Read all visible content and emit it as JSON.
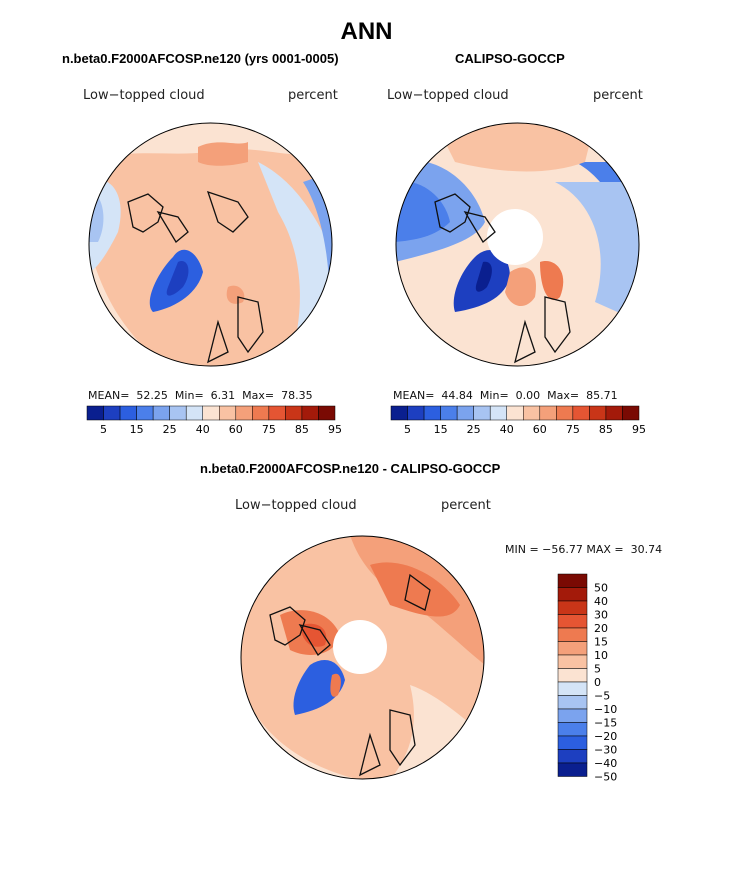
{
  "title": "ANN",
  "panels": {
    "model": {
      "heading": "n.beta0.F2000AFCOSP.ne120 (yrs 0001-0005)",
      "left_label": "Low−topped cloud",
      "right_label": "percent",
      "mean_label": "MEAN=",
      "mean": "52.25",
      "min_label": "Min=",
      "min": "6.31",
      "max_label": "Max=",
      "max": "78.35"
    },
    "obs": {
      "heading": "CALIPSO-GOCCP",
      "left_label": "Low−topped cloud",
      "right_label": "percent",
      "mean_label": "MEAN=",
      "mean": "44.84",
      "min_label": "Min=",
      "min": "0.00",
      "max_label": "Max=",
      "max": "85.71"
    },
    "diff": {
      "heading": "n.beta0.F2000AFCOSP.ne120 - CALIPSO-GOCCP",
      "left_label": "Low−topped cloud",
      "right_label": "percent",
      "minmax": "MIN = −56.77 MAX =  30.74"
    }
  },
  "colors": {
    "abs_scale": [
      "#0a1f8f",
      "#1d3fc0",
      "#2c5fe0",
      "#4b7fea",
      "#7ba3ee",
      "#a8c4f2",
      "#d4e4f7",
      "#fbe3d2",
      "#f9c2a3",
      "#f4a07a",
      "#ee7a50",
      "#e55533",
      "#c93518",
      "#a31a0a",
      "#7a0a03"
    ],
    "diff_scale": [
      "#7a0a03",
      "#a31a0a",
      "#c93518",
      "#e55533",
      "#ee7a50",
      "#f4a07a",
      "#f9c2a3",
      "#fbe3d2",
      "#d4e4f7",
      "#a8c4f2",
      "#7ba3ee",
      "#4b7fea",
      "#2c5fe0",
      "#1d3fc0",
      "#0a1f8f"
    ]
  },
  "chart_data": [
    {
      "type": "heatmap",
      "title": "n.beta0.F2000AFCOSP.ne120 (yrs 0001-0005)",
      "variable": "Low-topped cloud",
      "units": "percent",
      "projection": "north polar stereographic",
      "mean": 52.25,
      "min": 6.31,
      "max": 78.35,
      "colorbar_levels": [
        5,
        10,
        15,
        20,
        25,
        30,
        40,
        50,
        60,
        65,
        75,
        80,
        85,
        90,
        95
      ],
      "colorbar_tick_labels": [
        "5",
        "15",
        "25",
        "40",
        "60",
        "75",
        "85",
        "95"
      ]
    },
    {
      "type": "heatmap",
      "title": "CALIPSO-GOCCP",
      "variable": "Low-topped cloud",
      "units": "percent",
      "projection": "north polar stereographic",
      "mean": 44.84,
      "min": 0.0,
      "max": 85.71,
      "colorbar_levels": [
        5,
        10,
        15,
        20,
        25,
        30,
        40,
        50,
        60,
        65,
        75,
        80,
        85,
        90,
        95
      ],
      "colorbar_tick_labels": [
        "5",
        "15",
        "25",
        "40",
        "60",
        "75",
        "85",
        "95"
      ]
    },
    {
      "type": "heatmap",
      "title": "n.beta0.F2000AFCOSP.ne120 - CALIPSO-GOCCP",
      "variable": "Low-topped cloud",
      "units": "percent",
      "projection": "north polar stereographic",
      "min": -56.77,
      "max": 30.74,
      "colorbar_levels": [
        50,
        40,
        30,
        20,
        15,
        10,
        5,
        0,
        -5,
        -10,
        -15,
        -20,
        -30,
        -40,
        -50
      ],
      "colorbar_tick_labels": [
        "50",
        "40",
        "30",
        "20",
        "15",
        "10",
        "5",
        "0",
        "−5",
        "−10",
        "−15",
        "−20",
        "−30",
        "−40",
        "−50"
      ]
    }
  ]
}
